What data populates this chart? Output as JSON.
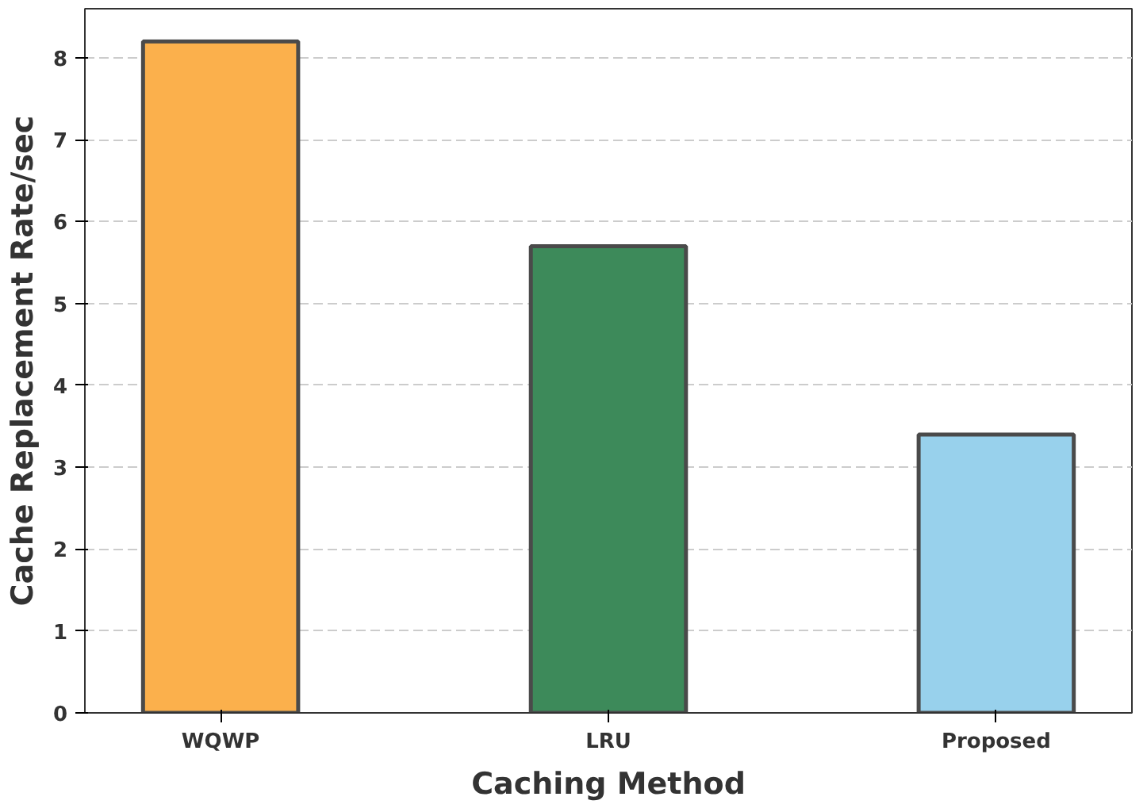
{
  "chart_data": {
    "type": "bar",
    "xlabel": "Caching Method",
    "ylabel": "Cache Replacement Rate/sec",
    "categories": [
      "WQWP",
      "LRU",
      "Proposed"
    ],
    "values": [
      8.2,
      5.7,
      3.4
    ],
    "colors": [
      "#fbb04c",
      "#3d8a5a",
      "#98d1ec"
    ],
    "ylim": [
      0,
      8.6
    ],
    "yticks": [
      0,
      1,
      2,
      3,
      4,
      5,
      6,
      7,
      8
    ],
    "grid": "y"
  }
}
